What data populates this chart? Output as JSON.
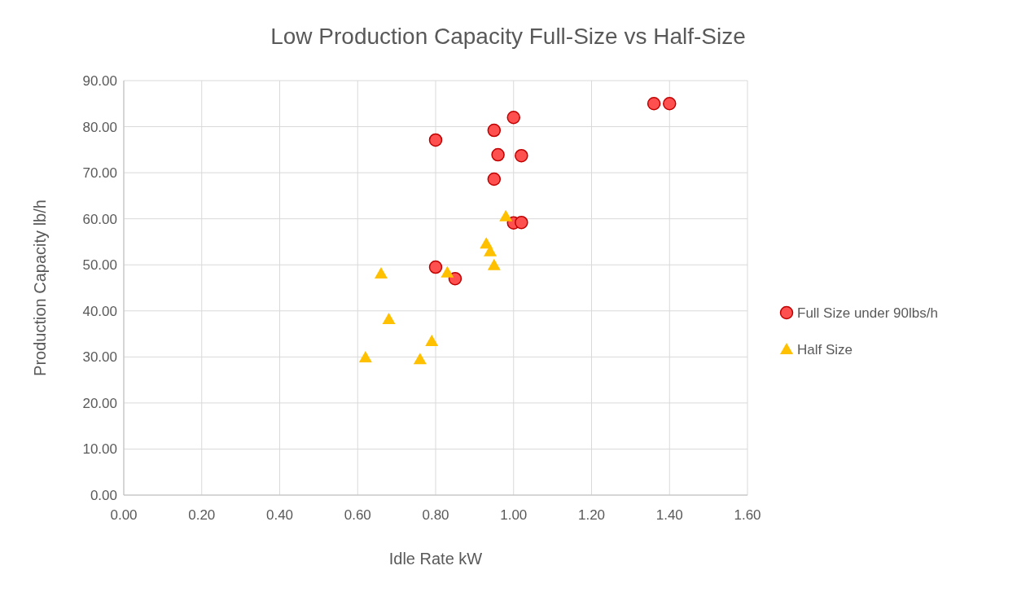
{
  "chart_data": {
    "type": "scatter",
    "title": "Low Production Capacity Full-Size vs Half-Size",
    "xlabel": "Idle Rate kW",
    "ylabel": "Production Capacity lb/h",
    "xlim": [
      0,
      1.6
    ],
    "xticks": [
      {
        "value": 0,
        "label": "0.00"
      },
      {
        "value": 0.2,
        "label": "0.20"
      },
      {
        "value": 0.4,
        "label": "0.40"
      },
      {
        "value": 0.6,
        "label": "0.60"
      },
      {
        "value": 0.8,
        "label": "0.80"
      },
      {
        "value": 1,
        "label": "1.00"
      },
      {
        "value": 1.2,
        "label": "1.20"
      },
      {
        "value": 1.4,
        "label": "1.40"
      },
      {
        "value": 1.6,
        "label": "1.60"
      }
    ],
    "ylim": [
      0,
      90
    ],
    "yticks": [
      {
        "value": 0,
        "label": "0.00"
      },
      {
        "value": 10,
        "label": "10.00"
      },
      {
        "value": 20,
        "label": "20.00"
      },
      {
        "value": 30,
        "label": "30.00"
      },
      {
        "value": 40,
        "label": "40.00"
      },
      {
        "value": 50,
        "label": "50.00"
      },
      {
        "value": 60,
        "label": "60.00"
      },
      {
        "value": 70,
        "label": "70.00"
      },
      {
        "value": 80,
        "label": "80.00"
      },
      {
        "value": 90,
        "label": "90.00"
      }
    ],
    "grid": true,
    "legend": "right",
    "series": [
      {
        "name": "Full Size under 90lbs/h",
        "color": "#ff5050",
        "marker": "circle",
        "x": [
          1.36,
          1.4,
          1.0,
          0.95,
          0.8,
          0.96,
          1.02,
          0.95,
          1.0,
          1.02,
          0.8,
          0.85
        ],
        "values": [
          85,
          85,
          82,
          79.2,
          77.1,
          73.9,
          73.7,
          68.6,
          59.1,
          59.2,
          49.5,
          47
        ]
      },
      {
        "name": "Half Size",
        "color": "#ffc000",
        "marker": "triangle",
        "x": [
          0.98,
          0.93,
          0.94,
          0.95,
          0.83,
          0.66,
          0.68,
          0.79,
          0.62,
          0.76
        ],
        "values": [
          60.5,
          54.6,
          52.9,
          49.9,
          48.3,
          48.1,
          38.2,
          33.4,
          29.9,
          29.5
        ]
      }
    ]
  }
}
